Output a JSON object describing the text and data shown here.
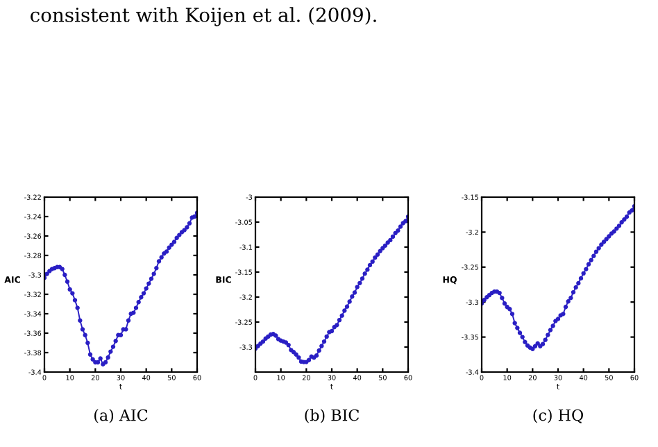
{
  "chart_data": [
    {
      "type": "line",
      "ylabel": "AIC",
      "xlabel": "t",
      "annotations": [
        "consistent with Koijen et al. (2009).",
        "(a) AIC"
      ],
      "marker": "circle",
      "line_style": "solid",
      "xlim": [
        0,
        60
      ],
      "xticks": [
        0,
        10,
        20,
        30,
        40,
        50,
        60
      ],
      "ylim": [
        -3.4,
        -3.22
      ],
      "yticks": [
        -3.4,
        -3.38,
        -3.36,
        -3.34,
        -3.32,
        -3.3,
        -3.28,
        -3.26,
        -3.24,
        -3.22
      ],
      "x": [
        0,
        1,
        2,
        3,
        4,
        5,
        6,
        7,
        8,
        9,
        10,
        11,
        12,
        13,
        14,
        15,
        16,
        17,
        18,
        19,
        20,
        21,
        22,
        23,
        24,
        25,
        26,
        27,
        28,
        29,
        30,
        31,
        32,
        33,
        34,
        35,
        36,
        37,
        38,
        39,
        40,
        41,
        42,
        43,
        44,
        45,
        46,
        47,
        48,
        49,
        50,
        51,
        52,
        53,
        54,
        55,
        56,
        57,
        58,
        59,
        60
      ],
      "series": [
        {
          "color": "#2a1fc4",
          "values": [
            -3.303,
            -3.299,
            -3.296,
            -3.294,
            -3.293,
            -3.292,
            -3.292,
            -3.294,
            -3.3,
            -3.307,
            -3.315,
            -3.319,
            -3.326,
            -3.334,
            -3.347,
            -3.356,
            -3.362,
            -3.37,
            -3.382,
            -3.387,
            -3.39,
            -3.39,
            -3.386,
            -3.392,
            -3.39,
            -3.385,
            -3.379,
            -3.374,
            -3.368,
            -3.362,
            -3.362,
            -3.356,
            -3.356,
            -3.347,
            -3.34,
            -3.339,
            -3.334,
            -3.328,
            -3.323,
            -3.319,
            -3.314,
            -3.309,
            -3.304,
            -3.299,
            -3.293,
            -3.286,
            -3.282,
            -3.278,
            -3.276,
            -3.272,
            -3.269,
            -3.266,
            -3.262,
            -3.259,
            -3.256,
            -3.254,
            -3.251,
            -3.247,
            -3.241,
            -3.24,
            -3.236
          ]
        }
      ]
    },
    {
      "type": "line",
      "ylabel": "BIC",
      "xlabel": "t",
      "annotations": [
        "(b) BIC"
      ],
      "marker": "circle",
      "line_style": "solid",
      "xlim": [
        0,
        60
      ],
      "xticks": [
        0,
        10,
        20,
        30,
        40,
        50,
        60
      ],
      "ylim": [
        -3.35,
        -3
      ],
      "yticks": [
        -3.3,
        -3.25,
        -3.2,
        -3.15,
        -3.1,
        -3.05,
        -3
      ],
      "x": [
        0,
        1,
        2,
        3,
        4,
        5,
        6,
        7,
        8,
        9,
        10,
        11,
        12,
        13,
        14,
        15,
        16,
        17,
        18,
        19,
        20,
        21,
        22,
        23,
        24,
        25,
        26,
        27,
        28,
        29,
        30,
        31,
        32,
        33,
        34,
        35,
        36,
        37,
        38,
        39,
        40,
        41,
        42,
        43,
        44,
        45,
        46,
        47,
        48,
        49,
        50,
        51,
        52,
        53,
        54,
        55,
        56,
        57,
        58,
        59,
        60
      ],
      "series": [
        {
          "color": "#2a1fc4",
          "values": [
            -3.303,
            -3.298,
            -3.293,
            -3.289,
            -3.283,
            -3.279,
            -3.275,
            -3.274,
            -3.277,
            -3.284,
            -3.287,
            -3.289,
            -3.291,
            -3.296,
            -3.306,
            -3.31,
            -3.315,
            -3.321,
            -3.329,
            -3.33,
            -3.33,
            -3.326,
            -3.319,
            -3.321,
            -3.317,
            -3.307,
            -3.298,
            -3.289,
            -3.279,
            -3.27,
            -3.268,
            -3.26,
            -3.256,
            -3.246,
            -3.237,
            -3.227,
            -3.219,
            -3.209,
            -3.199,
            -3.191,
            -3.18,
            -3.172,
            -3.163,
            -3.153,
            -3.145,
            -3.136,
            -3.129,
            -3.121,
            -3.115,
            -3.108,
            -3.102,
            -3.097,
            -3.091,
            -3.086,
            -3.079,
            -3.072,
            -3.067,
            -3.059,
            -3.052,
            -3.048,
            -3.039
          ]
        }
      ]
    },
    {
      "type": "line",
      "ylabel": "HQ",
      "xlabel": "t",
      "annotations": [
        "(c) HQ"
      ],
      "marker": "circle",
      "line_style": "solid",
      "xlim": [
        0,
        60
      ],
      "xticks": [
        0,
        10,
        20,
        30,
        40,
        50,
        60
      ],
      "ylim": [
        -3.4,
        -3.15
      ],
      "yticks": [
        -3.4,
        -3.35,
        -3.3,
        -3.25,
        -3.2,
        -3.15
      ],
      "x": [
        0,
        1,
        2,
        3,
        4,
        5,
        6,
        7,
        8,
        9,
        10,
        11,
        12,
        13,
        14,
        15,
        16,
        17,
        18,
        19,
        20,
        21,
        22,
        23,
        24,
        25,
        26,
        27,
        28,
        29,
        30,
        31,
        32,
        33,
        34,
        35,
        36,
        37,
        38,
        39,
        40,
        41,
        42,
        43,
        44,
        45,
        46,
        47,
        48,
        49,
        50,
        51,
        52,
        53,
        54,
        55,
        56,
        57,
        58,
        59,
        60
      ],
      "series": [
        {
          "color": "#2a1fc4",
          "values": [
            -3.302,
            -3.297,
            -3.293,
            -3.29,
            -3.287,
            -3.285,
            -3.285,
            -3.287,
            -3.294,
            -3.302,
            -3.307,
            -3.31,
            -3.317,
            -3.33,
            -3.337,
            -3.344,
            -3.35,
            -3.357,
            -3.362,
            -3.365,
            -3.367,
            -3.363,
            -3.359,
            -3.363,
            -3.36,
            -3.354,
            -3.347,
            -3.34,
            -3.334,
            -3.327,
            -3.324,
            -3.319,
            -3.317,
            -3.307,
            -3.299,
            -3.294,
            -3.286,
            -3.279,
            -3.273,
            -3.266,
            -3.259,
            -3.253,
            -3.246,
            -3.24,
            -3.234,
            -3.228,
            -3.223,
            -3.218,
            -3.214,
            -3.21,
            -3.206,
            -3.202,
            -3.199,
            -3.195,
            -3.191,
            -3.186,
            -3.182,
            -3.178,
            -3.172,
            -3.169,
            -3.163
          ]
        }
      ]
    }
  ]
}
